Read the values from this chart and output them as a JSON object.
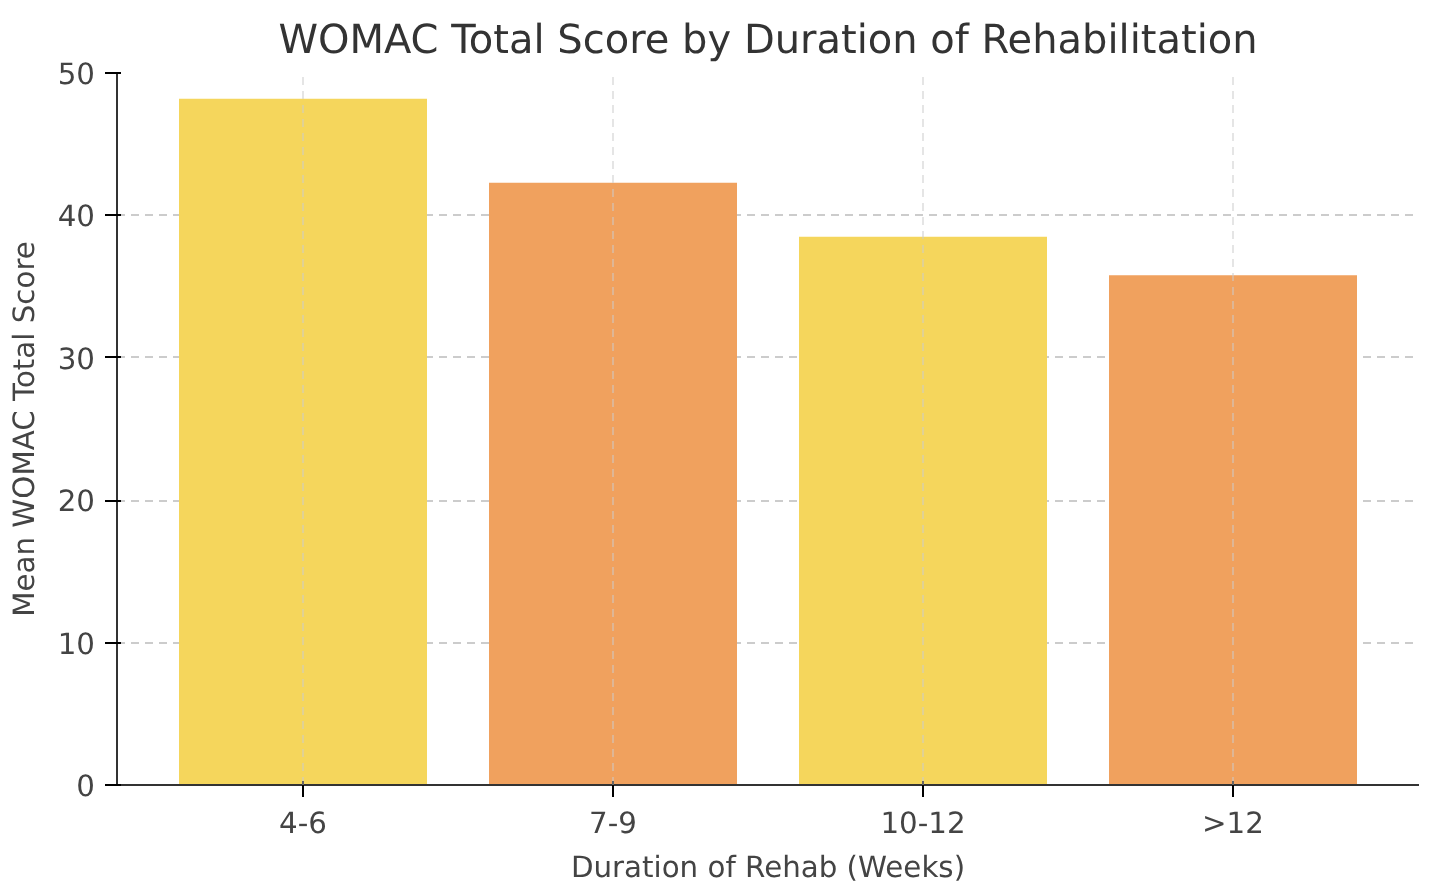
{
  "chart_data": {
    "type": "bar",
    "title": "WOMAC Total Score by Duration of Rehabilitation",
    "xlabel": "Duration of Rehab (Weeks)",
    "ylabel": "Mean WOMAC Total Score",
    "categories": [
      "4-6",
      "7-9",
      "10-12",
      ">12"
    ],
    "values": [
      48.2,
      42.3,
      38.5,
      35.8
    ],
    "colors": [
      "#f5d65c",
      "#f0a15e",
      "#f5d65c",
      "#f0a15e"
    ],
    "ylim": [
      0,
      50
    ],
    "yticks": [
      0,
      10,
      20,
      30,
      40,
      50
    ],
    "grid": true
  }
}
